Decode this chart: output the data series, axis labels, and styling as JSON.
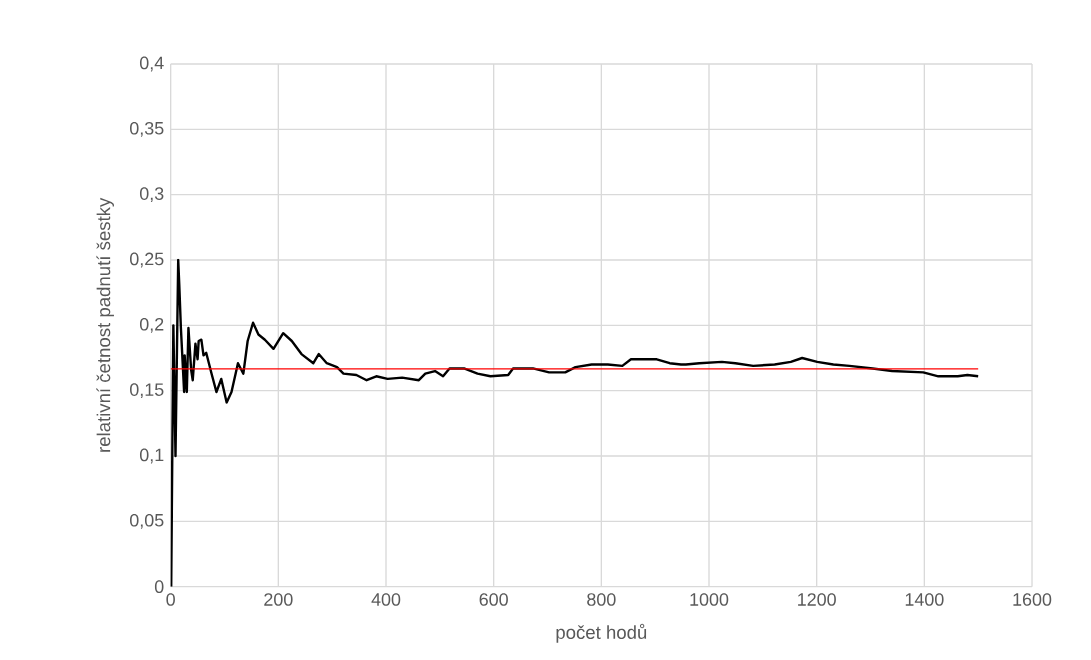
{
  "chart_data": {
    "type": "line",
    "xlabel": "počet hodů",
    "ylabel": "relativní četnost padnutí šestky",
    "xlim": [
      0,
      1600
    ],
    "ylim": [
      0,
      0.4
    ],
    "xticks": [
      0,
      200,
      400,
      600,
      800,
      1000,
      1200,
      1400,
      1600
    ],
    "yticks": [
      0,
      {
        "value": 0.05,
        "label": "0,05"
      },
      {
        "value": 0.1,
        "label": "0,1"
      },
      {
        "value": 0.15,
        "label": "0,15"
      },
      {
        "value": 0.2,
        "label": "0,2"
      },
      {
        "value": 0.25,
        "label": "0,25"
      },
      {
        "value": 0.3,
        "label": "0,3"
      },
      {
        "value": 0.35,
        "label": "0,35"
      },
      {
        "value": 0.4,
        "label": "0,4"
      }
    ],
    "grid": true,
    "marker": "none",
    "line_style": "solid",
    "series": [
      {
        "color": "#000000",
        "x": [
          1,
          5,
          9,
          14,
          16,
          19,
          25,
          26,
          30,
          33,
          38,
          41,
          46,
          50,
          52,
          57,
          61,
          66,
          76,
          85,
          94,
          104,
          113,
          125,
          135,
          143,
          153,
          163,
          175,
          191,
          209,
          225,
          243,
          265,
          275,
          290,
          309,
          321,
          345,
          364,
          382,
          403,
          430,
          461,
          473,
          491,
          506,
          518,
          545,
          570,
          594,
          627,
          636,
          673,
          703,
          733,
          752,
          782,
          812,
          839,
          855,
          885,
          903,
          927,
          948,
          957,
          982,
          1024,
          1049,
          1082,
          1122,
          1152,
          1173,
          1201,
          1231,
          1261,
          1304,
          1340,
          1398,
          1426,
          1462,
          1480,
          1500
        ],
        "values": [
          0,
          0.2,
          0.1,
          0.25,
          0.231,
          0.198,
          0.149,
          0.177,
          0.149,
          0.198,
          0.166,
          0.158,
          0.186,
          0.174,
          0.188,
          0.189,
          0.177,
          0.179,
          0.163,
          0.149,
          0.159,
          0.141,
          0.149,
          0.171,
          0.163,
          0.188,
          0.202,
          0.193,
          0.189,
          0.182,
          0.194,
          0.188,
          0.178,
          0.171,
          0.178,
          0.171,
          0.168,
          0.163,
          0.162,
          0.158,
          0.161,
          0.159,
          0.16,
          0.158,
          0.163,
          0.165,
          0.161,
          0.167,
          0.167,
          0.163,
          0.161,
          0.162,
          0.167,
          0.167,
          0.164,
          0.164,
          0.168,
          0.17,
          0.17,
          0.169,
          0.174,
          0.174,
          0.174,
          0.171,
          0.17,
          0.17,
          0.171,
          0.172,
          0.171,
          0.169,
          0.17,
          0.172,
          0.175,
          0.172,
          0.17,
          0.169,
          0.167,
          0.165,
          0.164,
          0.161,
          0.161,
          0.162,
          0.161
        ]
      },
      {
        "color": "#ff0000",
        "x": [
          0,
          1500
        ],
        "values": [
          0.1667,
          0.1667
        ]
      }
    ]
  }
}
